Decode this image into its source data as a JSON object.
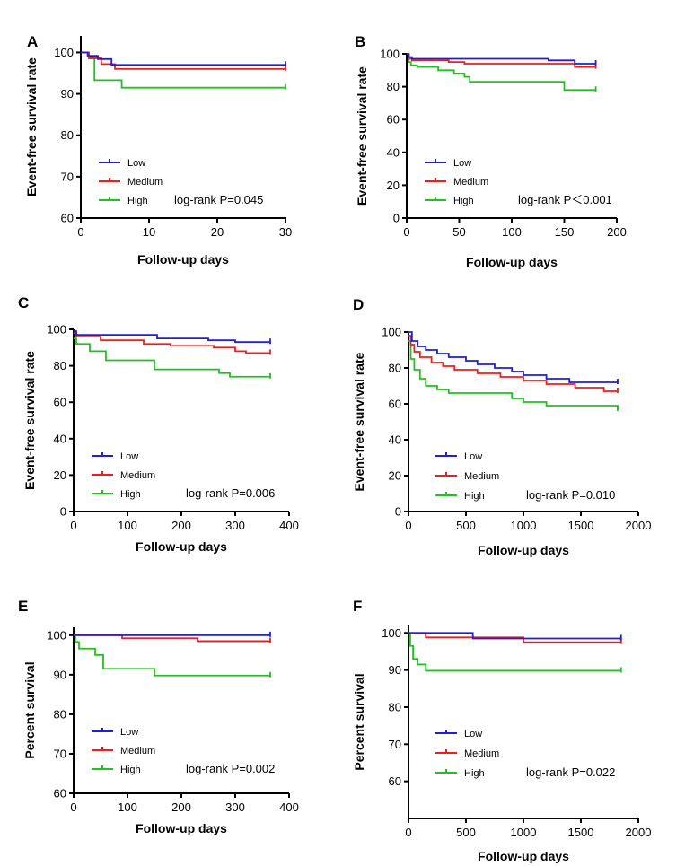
{
  "legend_items": [
    "Low",
    "Medium",
    "High"
  ],
  "colors": {
    "Low": "#1f1fd6",
    "Medium": "#f21c1c",
    "High": "#22c11e",
    "axis": "#000000"
  },
  "chart_data": [
    {
      "panel": "A",
      "type": "line",
      "step": true,
      "ylabel": "Event-free survival rate",
      "xlabel": "Follow-up days",
      "xlim": [
        0,
        30
      ],
      "xticks": [
        0,
        10,
        20,
        30
      ],
      "ylim": [
        60,
        104
      ],
      "yticks": [
        60,
        70,
        80,
        90,
        100
      ],
      "annotation": "log-rank P=0.045",
      "legend_placement": "bottom-left",
      "series": [
        {
          "name": "Low",
          "x": [
            0,
            1,
            2.5,
            4.5,
            30
          ],
          "y": [
            100,
            99.2,
            98.4,
            97,
            97
          ]
        },
        {
          "name": "Medium",
          "x": [
            0,
            1.2,
            3,
            5,
            30
          ],
          "y": [
            100,
            98.6,
            97.2,
            96,
            96
          ]
        },
        {
          "name": "High",
          "x": [
            0,
            1.2,
            2,
            6,
            30
          ],
          "y": [
            100,
            98.6,
            93.3,
            91.5,
            91.5
          ]
        }
      ]
    },
    {
      "panel": "B",
      "type": "line",
      "step": true,
      "ylabel": "Event-free survival rate",
      "xlabel": "Follow-up days",
      "xlim": [
        0,
        200
      ],
      "xticks": [
        0,
        50,
        100,
        150,
        200
      ],
      "ylim": [
        0,
        100
      ],
      "yticks": [
        0,
        20,
        40,
        60,
        80,
        100
      ],
      "annotation": "log-rank P＜0.001",
      "legend_placement": "bottom-left",
      "series": [
        {
          "name": "Low",
          "x": [
            0,
            2,
            5,
            135,
            160,
            180
          ],
          "y": [
            100,
            98,
            97,
            96,
            94,
            94
          ]
        },
        {
          "name": "Medium",
          "x": [
            0,
            2,
            5,
            40,
            55,
            135,
            160,
            180
          ],
          "y": [
            100,
            97,
            96,
            95,
            94,
            94,
            92,
            92
          ]
        },
        {
          "name": "High",
          "x": [
            0,
            2,
            4,
            10,
            30,
            45,
            55,
            60,
            135,
            150,
            180
          ],
          "y": [
            100,
            95,
            93,
            92,
            90,
            88,
            86,
            83,
            83,
            78,
            78
          ]
        }
      ]
    },
    {
      "panel": "C",
      "type": "line",
      "step": true,
      "ylabel": "Event-free survival rate",
      "xlabel": "Follow-up days",
      "xlim": [
        0,
        400
      ],
      "xticks": [
        0,
        100,
        200,
        300,
        400
      ],
      "ylim": [
        0,
        100
      ],
      "yticks": [
        0,
        20,
        40,
        60,
        80,
        100
      ],
      "annotation": "log-rank P=0.006",
      "legend_placement": "bottom-left",
      "series": [
        {
          "name": "Low",
          "x": [
            0,
            5,
            135,
            155,
            250,
            300,
            365
          ],
          "y": [
            99,
            97,
            97,
            95,
            94,
            93,
            93
          ]
        },
        {
          "name": "Medium",
          "x": [
            0,
            5,
            50,
            130,
            180,
            260,
            300,
            320,
            365
          ],
          "y": [
            98,
            96,
            94,
            92,
            91,
            90,
            88,
            87,
            87
          ]
        },
        {
          "name": "High",
          "x": [
            0,
            5,
            30,
            60,
            150,
            270,
            290,
            365
          ],
          "y": [
            95,
            92,
            88,
            83,
            78,
            76,
            74,
            74
          ]
        }
      ]
    },
    {
      "panel": "D",
      "type": "line",
      "step": true,
      "ylabel": "Event-free survival rate",
      "xlabel": "Follow-up days",
      "xlim": [
        0,
        2000
      ],
      "xticks": [
        0,
        500,
        1000,
        1500,
        2000
      ],
      "ylim": [
        0,
        100
      ],
      "yticks": [
        0,
        20,
        40,
        60,
        80,
        100
      ],
      "annotation": "log-rank P=0.010",
      "legend_placement": "bottom-left",
      "series": [
        {
          "name": "Low",
          "x": [
            0,
            30,
            80,
            150,
            250,
            350,
            500,
            600,
            750,
            900,
            1000,
            1200,
            1400,
            1820
          ],
          "y": [
            100,
            95,
            92,
            90,
            88,
            86,
            84,
            82,
            80,
            78,
            76,
            74,
            72,
            72
          ]
        },
        {
          "name": "Medium",
          "x": [
            0,
            20,
            50,
            100,
            200,
            300,
            400,
            600,
            800,
            1000,
            1200,
            1450,
            1700,
            1820
          ],
          "y": [
            98,
            93,
            89,
            86,
            83,
            81,
            79,
            77,
            75,
            73,
            71,
            69,
            67,
            67
          ]
        },
        {
          "name": "High",
          "x": [
            0,
            20,
            50,
            100,
            150,
            250,
            350,
            800,
            900,
            1000,
            1200,
            1800,
            1820
          ],
          "y": [
            95,
            85,
            79,
            74,
            70,
            68,
            66,
            66,
            63,
            61,
            59,
            59,
            57
          ]
        }
      ]
    },
    {
      "panel": "E",
      "type": "line",
      "step": true,
      "ylabel": "Percent survival",
      "xlabel": "Follow-up days",
      "xlim": [
        0,
        400
      ],
      "xticks": [
        0,
        100,
        200,
        300,
        400
      ],
      "ylim": [
        60,
        102
      ],
      "yticks": [
        60,
        70,
        80,
        90,
        100
      ],
      "annotation": "log-rank P=0.002",
      "legend_placement": "bottom-left",
      "series": [
        {
          "name": "Low",
          "x": [
            0,
            365
          ],
          "y": [
            100,
            100
          ]
        },
        {
          "name": "Medium",
          "x": [
            0,
            90,
            230,
            365
          ],
          "y": [
            100,
            99.2,
            98.5,
            98.5
          ]
        },
        {
          "name": "High",
          "x": [
            0,
            3,
            10,
            40,
            55,
            150,
            365
          ],
          "y": [
            100,
            98.3,
            96.6,
            95,
            91.5,
            89.8,
            89.8
          ]
        }
      ]
    },
    {
      "panel": "F",
      "type": "line",
      "step": true,
      "ylabel": "Percent survival",
      "xlabel": "Follow-up days",
      "xlim": [
        0,
        2000
      ],
      "xticks": [
        0,
        500,
        1000,
        1500,
        2000
      ],
      "ylim": [
        50,
        102
      ],
      "yticks": [
        60,
        70,
        80,
        90,
        100
      ],
      "annotation": "log-rank P=0.022",
      "legend_placement": "bottom-left",
      "series": [
        {
          "name": "Low",
          "x": [
            0,
            560,
            1850
          ],
          "y": [
            100,
            98.5,
            98.5
          ]
        },
        {
          "name": "Medium",
          "x": [
            0,
            150,
            1000,
            1850
          ],
          "y": [
            100,
            98.8,
            97.5,
            97.5
          ]
        },
        {
          "name": "High",
          "x": [
            0,
            15,
            40,
            80,
            150,
            1850
          ],
          "y": [
            100,
            96.5,
            93,
            91.5,
            89.8,
            89.8
          ]
        }
      ]
    }
  ]
}
